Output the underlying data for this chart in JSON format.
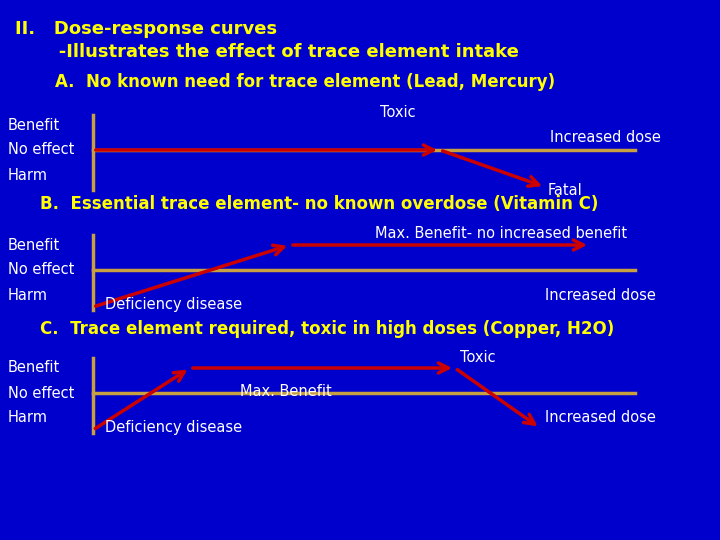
{
  "background_color": "#0000CC",
  "title_color": "#FFFF00",
  "white": "#FFFFFF",
  "tan": "#C8A040",
  "red": "#CC0000",
  "title_line1": "II.   Dose-response curves",
  "title_line2": "       -Illustrates the effect of trace element intake",
  "section_A_title": "A.  No known need for trace element (Lead, Mercury)",
  "section_B_title": "B.  Essential trace element- no known overdose (Vitamin C)",
  "section_C_title": "C.  Trace element required, toxic in high doses (Copper, H2O)"
}
